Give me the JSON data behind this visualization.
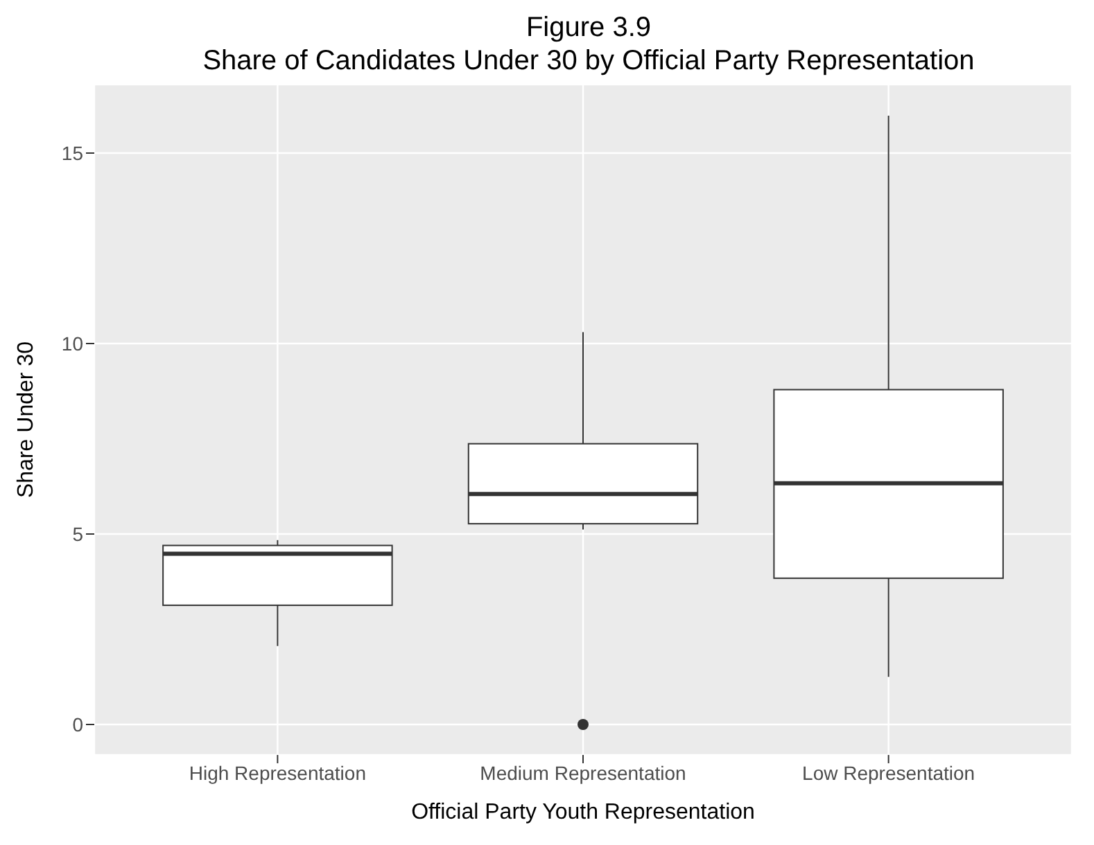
{
  "chart_data": {
    "type": "box",
    "title": "Figure 3.9\nShare of Candidates Under 30 by Official Party Representation",
    "xlabel": "Official Party Youth Representation",
    "ylabel": "Share Under 30",
    "categories": [
      "High Representation",
      "Medium Representation",
      "Low Representation"
    ],
    "boxes": [
      {
        "low": 2.06,
        "q1": 3.13,
        "median": 4.48,
        "q3": 4.7,
        "high": 4.84
      },
      {
        "low": 5.12,
        "q1": 5.27,
        "median": 6.05,
        "q3": 7.37,
        "high": 10.3,
        "outliers": [
          0
        ]
      },
      {
        "low": 1.25,
        "q1": 3.84,
        "median": 6.33,
        "q3": 8.79,
        "high": 15.98
      }
    ],
    "ylim": [
      -0.8,
      16.8
    ],
    "yticks": [
      0,
      5,
      10,
      15
    ],
    "grid": true,
    "marker": "circle"
  }
}
